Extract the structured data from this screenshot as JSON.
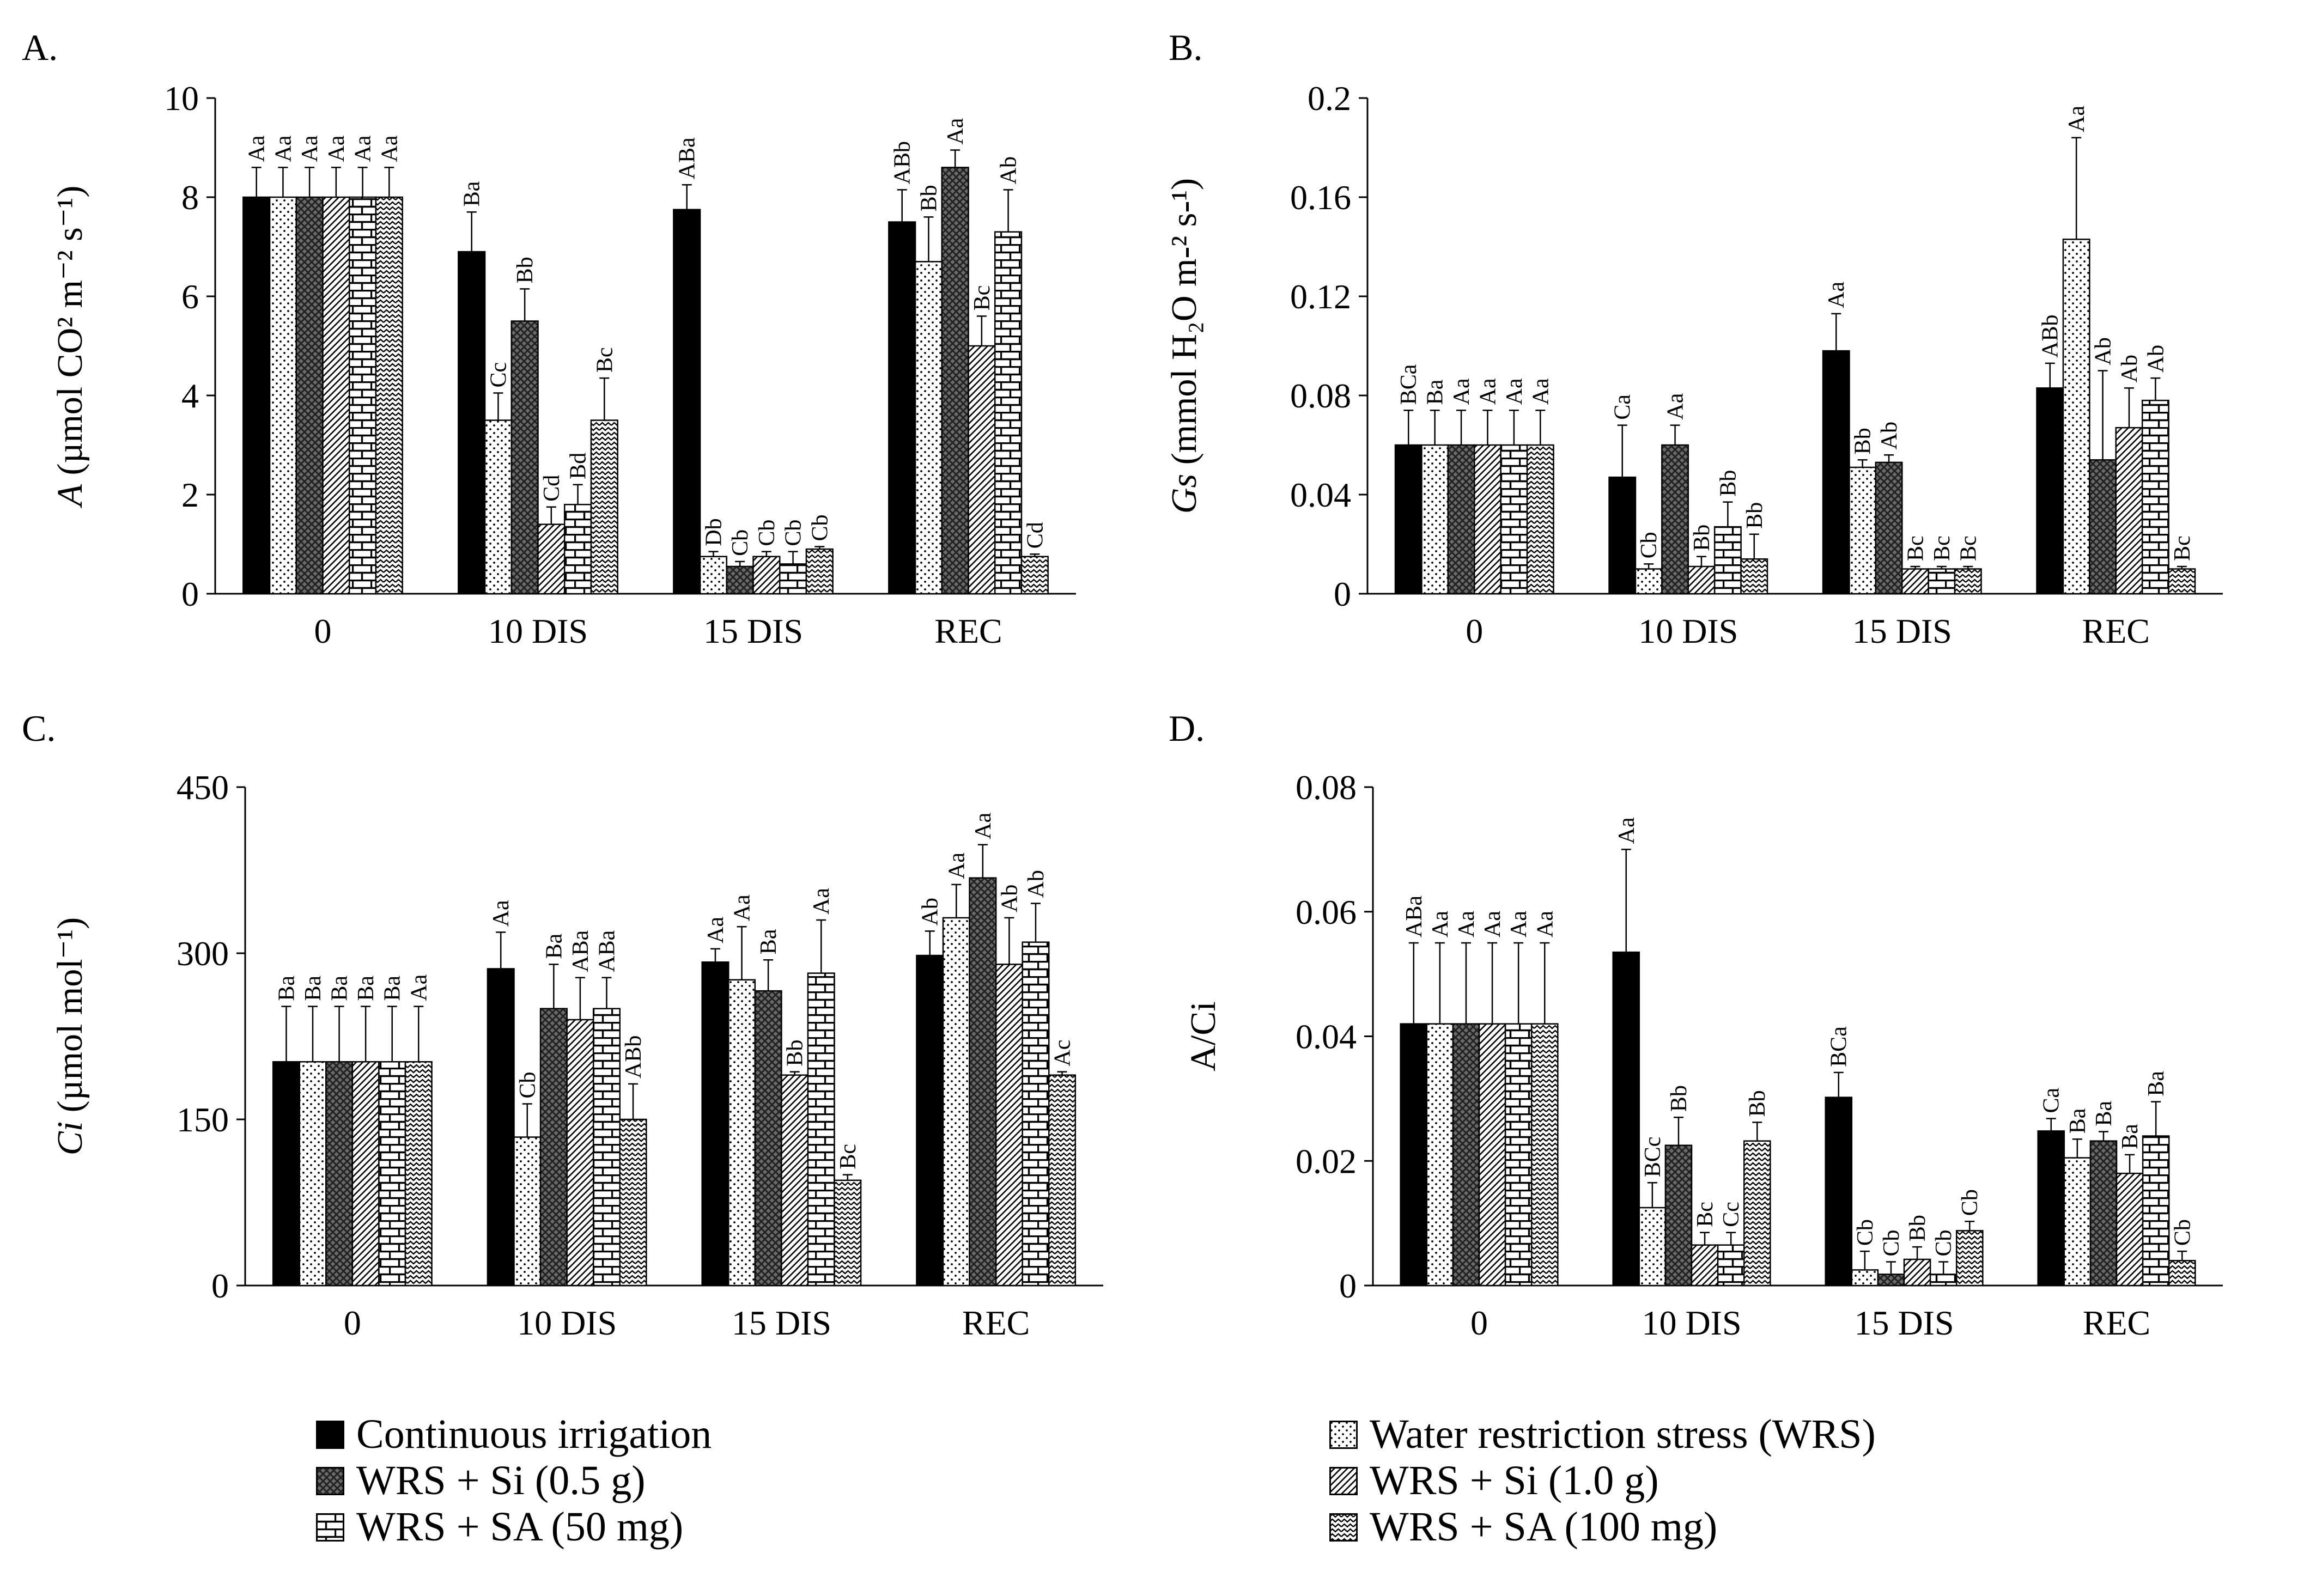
{
  "legend": [
    {
      "label": "Continuous irrigation",
      "fill": "solid"
    },
    {
      "label": "Water restriction stress (WRS)",
      "fill": "dots"
    },
    {
      "label": "WRS + Si (0.5 g)",
      "fill": "cross"
    },
    {
      "label": "WRS + Si (1.0 g)",
      "fill": "diag"
    },
    {
      "label": "WRS + SA (50 mg)",
      "fill": "brick"
    },
    {
      "label": "WRS + SA (100 mg)",
      "fill": "wave"
    }
  ],
  "chart_data": [
    {
      "panel": "A.",
      "type": "bar",
      "ylabel_italic": "A",
      "ylabel_text": " (µmol CO² m⁻² s⁻¹)",
      "ylim": [
        0,
        10
      ],
      "yticks": [
        "0",
        "2",
        "4",
        "6",
        "8",
        "10"
      ],
      "categories": [
        "0",
        "10 DIS",
        "15 DIS",
        "REC"
      ],
      "series": [
        {
          "name": "Continuous irrigation",
          "values": [
            8.0,
            6.9,
            7.75,
            7.5
          ],
          "errors": [
            0.6,
            0.8,
            0.5,
            0.65
          ],
          "labels": [
            "Aa",
            "Ba",
            "ABa",
            "ABb"
          ]
        },
        {
          "name": "Water restriction stress (WRS)",
          "values": [
            8.0,
            3.5,
            0.75,
            6.7
          ],
          "errors": [
            0.6,
            0.55,
            0.1,
            0.9
          ],
          "labels": [
            "Aa",
            "Cc",
            "Db",
            "Bb"
          ]
        },
        {
          "name": "WRS + Si (0.5 g)",
          "values": [
            8.0,
            5.5,
            0.55,
            8.6
          ],
          "errors": [
            0.6,
            0.65,
            0.1,
            0.35
          ],
          "labels": [
            "Aa",
            "Bb",
            "Cb",
            "Aa"
          ]
        },
        {
          "name": "WRS + Si (1.0 g)",
          "values": [
            8.0,
            1.4,
            0.75,
            5.0
          ],
          "errors": [
            0.6,
            0.35,
            0.1,
            0.6
          ],
          "labels": [
            "Aa",
            "Cd",
            "Cb",
            "Bc"
          ]
        },
        {
          "name": "WRS + SA (50 mg)",
          "values": [
            8.0,
            1.8,
            0.6,
            7.3
          ],
          "errors": [
            0.6,
            0.4,
            0.25,
            0.85
          ],
          "labels": [
            "Aa",
            "Bd",
            "Cb",
            "Ab"
          ]
        },
        {
          "name": "WRS + SA (100 mg)",
          "values": [
            8.0,
            3.5,
            0.9,
            0.75
          ],
          "errors": [
            0.6,
            0.85,
            0.05,
            0.05
          ],
          "labels": [
            "Aa",
            "Bc",
            "Cb",
            "Cd"
          ]
        }
      ]
    },
    {
      "panel": "B.",
      "type": "bar",
      "ylabel_italic": "Gs",
      "ylabel_text": " (mmol H₂O m-² s-¹)",
      "ylim": [
        0,
        0.2
      ],
      "yticks": [
        "0",
        "0.04",
        "0.08",
        "0.12",
        "0.16",
        "0.2"
      ],
      "categories": [
        "0",
        "10 DIS",
        "15 DIS",
        "REC"
      ],
      "series": [
        {
          "name": "Continuous irrigation",
          "values": [
            0.06,
            0.047,
            0.098,
            0.083
          ],
          "errors": [
            0.014,
            0.021,
            0.015,
            0.01
          ],
          "labels": [
            "BCa",
            "Ca",
            "Aa",
            "ABb"
          ]
        },
        {
          "name": "Water restriction stress (WRS)",
          "values": [
            0.06,
            0.01,
            0.051,
            0.143
          ],
          "errors": [
            0.014,
            0.002,
            0.003,
            0.041
          ],
          "labels": [
            "Ba",
            "Cb",
            "Bb",
            "Aa"
          ]
        },
        {
          "name": "WRS + Si (0.5 g)",
          "values": [
            0.06,
            0.06,
            0.053,
            0.054
          ],
          "errors": [
            0.014,
            0.008,
            0.003,
            0.036
          ],
          "labels": [
            "Aa",
            "Aa",
            "Ab",
            "Ab"
          ]
        },
        {
          "name": "WRS + Si (1.0 g)",
          "values": [
            0.06,
            0.011,
            0.01,
            0.067
          ],
          "errors": [
            0.014,
            0.004,
            0.001,
            0.016
          ],
          "labels": [
            "Aa",
            "Bb",
            "Bc",
            "Ab"
          ]
        },
        {
          "name": "WRS + SA (50 mg)",
          "values": [
            0.06,
            0.027,
            0.01,
            0.078
          ],
          "errors": [
            0.014,
            0.01,
            0.001,
            0.009
          ],
          "labels": [
            "Aa",
            "Bb",
            "Bc",
            "Ab"
          ]
        },
        {
          "name": "WRS + SA (100 mg)",
          "values": [
            0.06,
            0.014,
            0.01,
            0.01
          ],
          "errors": [
            0.014,
            0.01,
            0.001,
            0.001
          ],
          "labels": [
            "Aa",
            "Bb",
            "Bc",
            "Bc"
          ]
        }
      ]
    },
    {
      "panel": "C.",
      "type": "bar",
      "ylabel_italic": "Ci",
      "ylabel_text": " (µmol mol⁻¹)",
      "ylim": [
        0,
        450
      ],
      "yticks": [
        "0",
        "150",
        "300",
        "450"
      ],
      "categories": [
        "0",
        "10 DIS",
        "15 DIS",
        "REC"
      ],
      "series": [
        {
          "name": "Continuous irrigation",
          "values": [
            202,
            286,
            292,
            298
          ],
          "errors": [
            50,
            33,
            12,
            22
          ],
          "labels": [
            "Ba",
            "Aa",
            "Aa",
            "Ab"
          ]
        },
        {
          "name": "Water restriction stress (WRS)",
          "values": [
            202,
            134,
            276,
            332
          ],
          "errors": [
            50,
            30,
            48,
            30
          ],
          "labels": [
            "Ba",
            "Cb",
            "Aa",
            "Aa"
          ]
        },
        {
          "name": "WRS + Si (0.5 g)",
          "values": [
            202,
            250,
            266,
            368
          ],
          "errors": [
            50,
            40,
            28,
            30
          ],
          "labels": [
            "Ba",
            "Ba",
            "Ba",
            "Aa"
          ]
        },
        {
          "name": "WRS + Si (1.0 g)",
          "values": [
            202,
            240,
            190,
            290
          ],
          "errors": [
            50,
            38,
            3,
            42
          ],
          "labels": [
            "Ba",
            "ABa",
            "Bb",
            "Ab"
          ]
        },
        {
          "name": "WRS + SA (50 mg)",
          "values": [
            202,
            250,
            282,
            310
          ],
          "errors": [
            50,
            28,
            48,
            35
          ],
          "labels": [
            "Ba",
            "ABa",
            "Aa",
            "Ab"
          ]
        },
        {
          "name": "WRS + SA (100 mg)",
          "values": [
            202,
            150,
            95,
            190
          ],
          "errors": [
            50,
            32,
            5,
            3
          ],
          "labels": [
            "Aa",
            "ABb",
            "Bc",
            "Ac"
          ]
        }
      ]
    },
    {
      "panel": "D.",
      "type": "bar",
      "ylabel_italic": "",
      "ylabel_text": "A/Ci",
      "ylim": [
        0,
        0.08
      ],
      "yticks": [
        "0",
        "0.02",
        "0.04",
        "0.06",
        "0.08"
      ],
      "categories": [
        "0",
        "10 DIS",
        "15 DIS",
        "REC"
      ],
      "series": [
        {
          "name": "Continuous irrigation",
          "values": [
            0.042,
            0.0535,
            0.0302,
            0.0248
          ],
          "errors": [
            0.013,
            0.0165,
            0.004,
            0.002
          ],
          "labels": [
            "ABa",
            "Aa",
            "BCa",
            "Ca"
          ]
        },
        {
          "name": "Water restriction stress (WRS)",
          "values": [
            0.042,
            0.0125,
            0.0025,
            0.0205
          ],
          "errors": [
            0.013,
            0.004,
            0.003,
            0.003
          ],
          "labels": [
            "Aa",
            "BCc",
            "Cb",
            "Ba"
          ]
        },
        {
          "name": "WRS + Si (0.5 g)",
          "values": [
            0.042,
            0.0225,
            0.0018,
            0.0232
          ],
          "errors": [
            0.013,
            0.0045,
            0.002,
            0.0015
          ],
          "labels": [
            "Aa",
            "Bb",
            "Cb",
            "Ba"
          ]
        },
        {
          "name": "WRS + Si (1.0 g)",
          "values": [
            0.042,
            0.0065,
            0.0042,
            0.018
          ],
          "errors": [
            0.013,
            0.002,
            0.002,
            0.003
          ],
          "labels": [
            "Aa",
            "Bc",
            "Bb",
            "Ba"
          ]
        },
        {
          "name": "WRS + SA (50 mg)",
          "values": [
            0.042,
            0.0065,
            0.0018,
            0.024
          ],
          "errors": [
            0.013,
            0.002,
            0.002,
            0.0055
          ],
          "labels": [
            "Aa",
            "Cc",
            "Cb",
            "Ba"
          ]
        },
        {
          "name": "WRS + SA (100 mg)",
          "values": [
            0.042,
            0.0232,
            0.0088,
            0.004
          ],
          "errors": [
            0.013,
            0.003,
            0.0015,
            0.0015
          ],
          "labels": [
            "Aa",
            "Bb",
            "Cb",
            "Cb"
          ]
        }
      ]
    }
  ]
}
